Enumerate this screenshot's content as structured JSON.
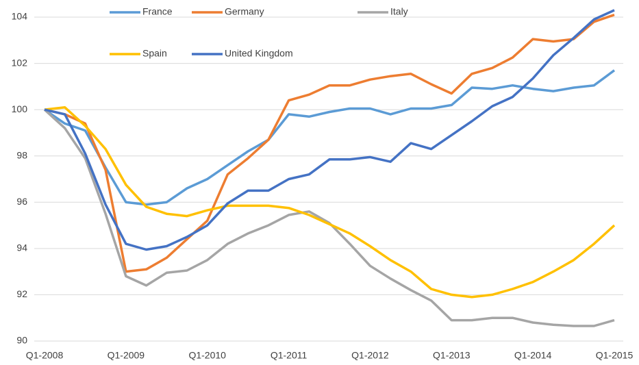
{
  "chart_data": {
    "type": "line",
    "categories": [
      "Q1-2008",
      null,
      null,
      null,
      "Q1-2009",
      null,
      null,
      null,
      "Q1-2010",
      null,
      null,
      null,
      "Q1-2011",
      null,
      null,
      null,
      "Q1-2012",
      null,
      null,
      null,
      "Q1-2013",
      null,
      null,
      null,
      "Q1-2014",
      null,
      null,
      null,
      "Q1-2015"
    ],
    "series": [
      {
        "name": "France",
        "color": "#5b9bd5",
        "values": [
          100,
          99.4,
          99.1,
          97.5,
          96.0,
          95.9,
          96.0,
          96.6,
          97.0,
          97.6,
          98.2,
          98.7,
          99.8,
          99.7,
          99.9,
          100.05,
          100.05,
          99.8,
          100.05,
          100.05,
          100.2,
          100.95,
          100.9,
          101.05,
          100.9,
          100.8,
          100.95,
          101.05,
          101.7
        ]
      },
      {
        "name": "Germany",
        "color": "#ed7d31",
        "values": [
          100,
          99.8,
          99.4,
          97.4,
          93.0,
          93.1,
          93.6,
          94.4,
          95.2,
          97.2,
          97.9,
          98.7,
          100.4,
          100.65,
          101.05,
          101.05,
          101.3,
          101.45,
          101.55,
          101.1,
          100.7,
          101.55,
          101.8,
          102.25,
          103.05,
          102.95,
          103.05,
          103.8,
          104.1
        ]
      },
      {
        "name": "Italy",
        "color": "#a5a5a5",
        "values": [
          100,
          99.2,
          97.9,
          95.5,
          92.8,
          92.4,
          92.95,
          93.05,
          93.5,
          94.2,
          94.65,
          95.0,
          95.45,
          95.6,
          95.1,
          94.2,
          93.25,
          92.7,
          92.2,
          91.75,
          90.9,
          90.9,
          91.0,
          91.0,
          90.8,
          90.7,
          90.65,
          90.65,
          90.9
        ]
      },
      {
        "name": "Spain",
        "color": "#ffc000",
        "values": [
          100,
          100.1,
          99.3,
          98.3,
          96.75,
          95.8,
          95.5,
          95.4,
          95.65,
          95.85,
          95.85,
          95.85,
          95.75,
          95.45,
          95.05,
          94.65,
          94.1,
          93.5,
          93.0,
          92.25,
          92.0,
          91.9,
          92.0,
          92.25,
          92.55,
          93.0,
          93.5,
          94.2,
          95.0
        ]
      },
      {
        "name": "United Kingdom",
        "color": "#4472c4",
        "values": [
          100,
          99.8,
          98.1,
          95.9,
          94.2,
          93.95,
          94.1,
          94.5,
          95.0,
          95.95,
          96.5,
          96.5,
          97.0,
          97.2,
          97.85,
          97.85,
          97.95,
          97.75,
          98.55,
          98.3,
          98.9,
          99.5,
          100.15,
          100.55,
          101.35,
          102.35,
          103.1,
          103.9,
          104.3
        ]
      }
    ],
    "ylim": [
      90,
      104
    ],
    "yticks": [
      90,
      92,
      94,
      96,
      98,
      100,
      102,
      104
    ],
    "grid": true
  }
}
